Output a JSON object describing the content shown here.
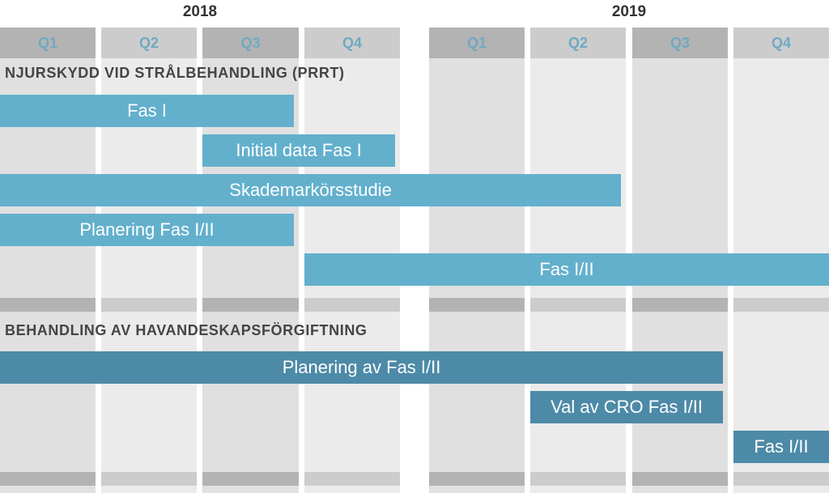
{
  "colors": {
    "section1_bar": "#63b0cd",
    "section2_bar": "#4d8aa7",
    "quarter_text": "#6fa9c2"
  },
  "years": [
    "2018",
    "2019"
  ],
  "quarters": [
    {
      "year": "2018",
      "label": "Q1"
    },
    {
      "year": "2018",
      "label": "Q2"
    },
    {
      "year": "2018",
      "label": "Q3"
    },
    {
      "year": "2018",
      "label": "Q4"
    },
    {
      "year": "2019",
      "label": "Q1"
    },
    {
      "year": "2019",
      "label": "Q2"
    },
    {
      "year": "2019",
      "label": "Q3"
    },
    {
      "year": "2019",
      "label": "Q4"
    }
  ],
  "sections": [
    {
      "title": "NJURSKYDD VID STRÅLBEHANDLING (PRRT)",
      "tasks": [
        {
          "label": "Fas I",
          "start": 0,
          "end": 2.95
        },
        {
          "label": "Initial data Fas I",
          "start": 2,
          "end": 3.95
        },
        {
          "label": "Skademarkörsstudie",
          "start": 0,
          "end": 5.95
        },
        {
          "label": "Planering Fas I/II",
          "start": 0,
          "end": 2.95
        },
        {
          "label": "Fas I/II",
          "start": 3,
          "end": 8
        }
      ]
    },
    {
      "title": "BEHANDLING AV HAVANDESKAPSFÖRGIFTNING",
      "tasks": [
        {
          "label": "Planering av Fas I/II",
          "start": 0,
          "end": 6.95
        },
        {
          "label": "Val av CRO Fas I/II",
          "start": 5,
          "end": 6.95
        },
        {
          "label": "Fas I/II",
          "start": 7,
          "end": 8
        }
      ]
    }
  ]
}
